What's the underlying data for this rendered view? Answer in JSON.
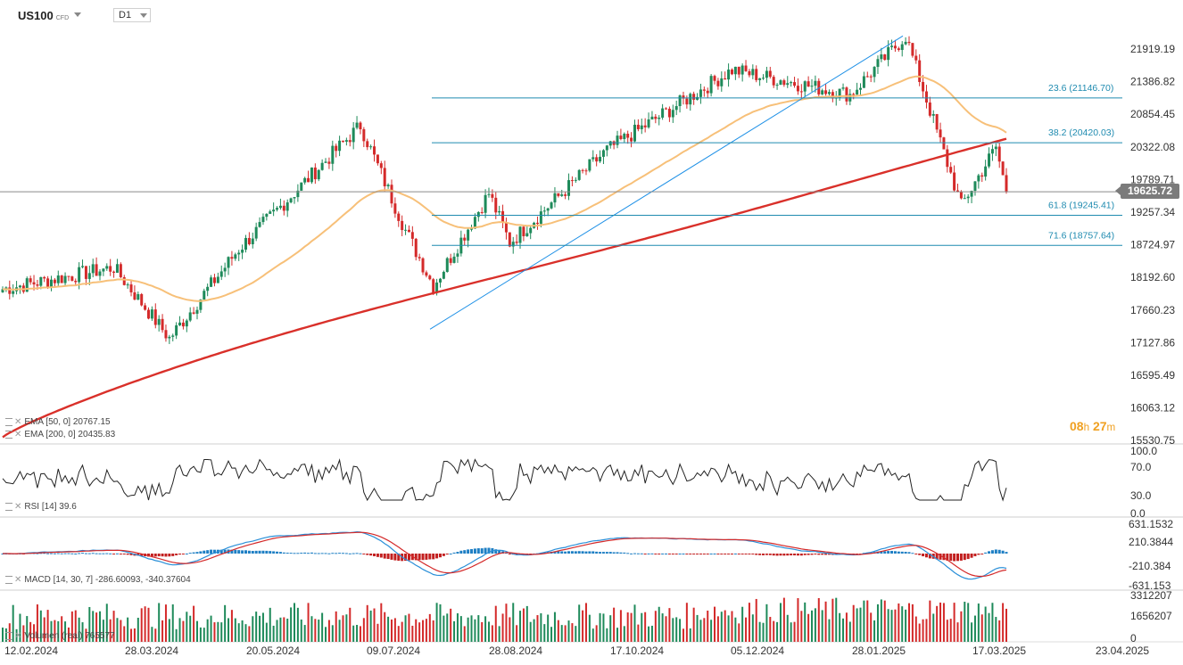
{
  "header": {
    "symbol": "US100",
    "instrument_type": "CFD",
    "timeframe": "D1"
  },
  "price_axis": [
    "21919.19",
    "21386.82",
    "20854.45",
    "20322.08",
    "19789.71",
    "19257.34",
    "18724.97",
    "18192.60",
    "17660.23",
    "17127.86",
    "16595.49",
    "16063.12",
    "15530.75"
  ],
  "current_price": "19625.72",
  "fib_levels": [
    {
      "label": "23.6 (21146.70)",
      "price": 21146.7
    },
    {
      "label": "38.2 (20420.03)",
      "price": 20420.03
    },
    {
      "label": "61.8 (19245.41)",
      "price": 19245.41
    },
    {
      "label": "71.6 (18757.64)",
      "price": 18757.64
    }
  ],
  "indicators": {
    "ema50": "EMA [50, 0]  20767.15",
    "ema200": "EMA [200, 0]  20435.83",
    "rsi": "RSI [14]  39.6",
    "macd": "MACD [14, 30, 7]  -286.60093,  -340.37604",
    "volume": "Volumen (real)  765577"
  },
  "rsi_axis": [
    "100.0",
    "70.0",
    "30.0",
    "0.0"
  ],
  "macd_axis": [
    "631.1532",
    "210.3844",
    "-210.384",
    "-631.153"
  ],
  "volume_axis": [
    "3312207",
    "1656207",
    "0"
  ],
  "date_axis": [
    "12.02.2024",
    "28.03.2024",
    "20.05.2024",
    "09.07.2024",
    "28.08.2024",
    "17.10.2024",
    "05.12.2024",
    "28.01.2025",
    "17.03.2025",
    "23.04.2025"
  ],
  "countdown": {
    "hours": "08",
    "h": "h",
    "minutes": "27",
    "m": "m"
  },
  "colors": {
    "up": "#1e8a5a",
    "down": "#d42a2a",
    "ema50": "#f7c079",
    "ema200": "#d9302a",
    "fib": "#1f8bb0",
    "trend": "#1e90e6"
  },
  "chart_data": {
    "type": "candlestick",
    "ylim": [
      15530.75,
      22200
    ],
    "anchors": [
      {
        "date": "12.02.2024",
        "close": 18050
      },
      {
        "date": "28.03.2024",
        "close": 18400
      },
      {
        "date": "19.04.2024",
        "close": 17250
      },
      {
        "date": "20.05.2024",
        "close": 18700
      },
      {
        "date": "09.07.2024",
        "close": 20700
      },
      {
        "date": "25.07.2024",
        "close": 19000
      },
      {
        "date": "05.08.2024",
        "close": 18100
      },
      {
        "date": "28.08.2024",
        "close": 19600
      },
      {
        "date": "06.09.2024",
        "close": 18800
      },
      {
        "date": "17.10.2024",
        "close": 20300
      },
      {
        "date": "05.12.2024",
        "close": 21600
      },
      {
        "date": "28.01.2025",
        "close": 21200
      },
      {
        "date": "19.02.2025",
        "close": 22150
      },
      {
        "date": "10.03.2025",
        "close": 19400
      },
      {
        "date": "24.03.2025",
        "close": 20350
      },
      {
        "date": "28.03.2025",
        "close": 19625.72
      }
    ],
    "ema50_last": 20767.15,
    "ema200_last": 20435.83
  }
}
